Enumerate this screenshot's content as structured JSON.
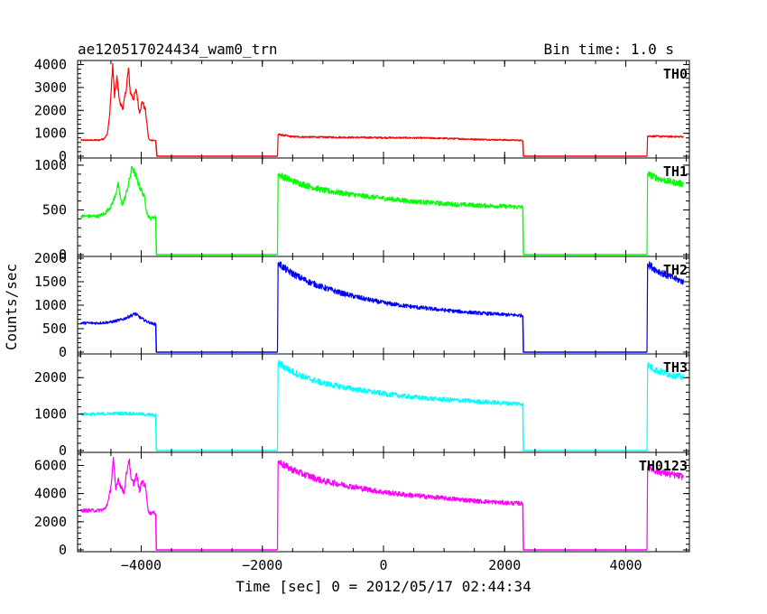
{
  "header": {
    "title": "ae120517024434_wam0_trn",
    "bin_time": "Bin time: 1.0 s"
  },
  "chart_data": {
    "type": "line",
    "xlabel": "Time [sec] 0 = 2012/05/17 02:44:34",
    "ylabel": "Counts/sec",
    "xlim": [
      -5050,
      5050
    ],
    "x_ticks": [
      -4000,
      -2000,
      0,
      2000,
      4000
    ],
    "x_tick_labels": [
      "−4000",
      "−2000",
      "0",
      "2000",
      "4000"
    ],
    "panels": [
      {
        "name": "TH0",
        "color": "#ff0000",
        "ylim": [
          0,
          4100
        ],
        "y_ticks": [
          0,
          1000,
          2000,
          3000,
          4000
        ],
        "y_tick_labels": [
          "0",
          "1000",
          "2000",
          "3000",
          "4000"
        ],
        "series": [
          {
            "x": [
              -5000,
              -4700,
              -4620,
              -4560,
              -4520,
              -4470,
              -4440,
              -4400,
              -4350,
              -4300,
              -4250,
              -4210,
              -4180,
              -4130,
              -4080,
              -4030,
              -3980,
              -3930,
              -3880,
              -3860,
              -3830,
              -3760
            ],
            "y": [
              700,
              700,
              760,
              950,
              1800,
              4000,
              2600,
              3400,
              2300,
              2100,
              2900,
              3800,
              2800,
              2500,
              2900,
              1900,
              2400,
              2000,
              800,
              700,
              700,
              690
            ]
          },
          {
            "x": [
              -3760,
              -3740,
              -1750
            ],
            "y": [
              690,
              0,
              0
            ]
          },
          {
            "x": [
              -1750,
              -1740,
              -1500,
              -1000,
              -500,
              0,
              500,
              1000,
              1500,
              2000,
              2300
            ],
            "y": [
              0,
              950,
              850,
              830,
              820,
              810,
              800,
              780,
              740,
              710,
              690
            ]
          },
          {
            "x": [
              2300,
              2310,
              4350
            ],
            "y": [
              690,
              0,
              0
            ]
          },
          {
            "x": [
              4350,
              4360,
              4600,
              4950
            ],
            "y": [
              0,
              880,
              860,
              850
            ]
          }
        ]
      },
      {
        "name": "TH1",
        "color": "#00ff00",
        "ylim": [
          0,
          1060
        ],
        "y_ticks": [
          0,
          500,
          1000
        ],
        "y_tick_labels": [
          "0",
          "500",
          "1000"
        ],
        "series": [
          {
            "x": [
              -5000,
              -4700,
              -4600,
              -4500,
              -4450,
              -4380,
              -4320,
              -4260,
              -4200,
              -4150,
              -4100,
              -4050,
              -4000,
              -3950,
              -3900,
              -3850,
              -3800,
              -3760
            ],
            "y": [
              430,
              430,
              460,
              540,
              620,
              780,
              550,
              650,
              820,
              980,
              900,
              800,
              720,
              650,
              450,
              400,
              420,
              420
            ]
          },
          {
            "x": [
              -3760,
              -3750,
              -1750
            ],
            "y": [
              420,
              0,
              0
            ]
          },
          {
            "x": [
              -1750,
              -1740,
              -1600,
              -1400,
              -1200,
              -1000,
              -700,
              -400,
              0,
              400,
              800,
              1200,
              1600,
              2000,
              2300
            ],
            "y": [
              0,
              900,
              850,
              800,
              760,
              720,
              690,
              660,
              630,
              600,
              580,
              560,
              550,
              540,
              530
            ]
          },
          {
            "x": [
              2300,
              2310,
              4350
            ],
            "y": [
              530,
              0,
              0
            ]
          },
          {
            "x": [
              4350,
              4360,
              4500,
              4700,
              4950
            ],
            "y": [
              0,
              900,
              860,
              820,
              790
            ]
          }
        ]
      },
      {
        "name": "TH2",
        "color": "#0000ff",
        "ylim": [
          0,
          2000
        ],
        "y_ticks": [
          0,
          500,
          1000,
          1500,
          2000
        ],
        "y_tick_labels": [
          "0",
          "500",
          "1000",
          "1500",
          "2000"
        ],
        "series": [
          {
            "x": [
              -5000,
              -4700,
              -4500,
              -4300,
              -4200,
              -4100,
              -4000,
              -3900,
              -3800,
              -3760
            ],
            "y": [
              620,
              620,
              640,
              700,
              760,
              820,
              720,
              650,
              600,
              600
            ]
          },
          {
            "x": [
              -3760,
              -3750,
              -1750
            ],
            "y": [
              600,
              0,
              0
            ]
          },
          {
            "x": [
              -1750,
              -1740,
              -1600,
              -1400,
              -1200,
              -1000,
              -700,
              -400,
              0,
              400,
              800,
              1200,
              1600,
              2000,
              2300
            ],
            "y": [
              0,
              1900,
              1750,
              1600,
              1480,
              1380,
              1260,
              1160,
              1050,
              980,
              920,
              870,
              830,
              800,
              780
            ]
          },
          {
            "x": [
              2300,
              2310,
              4350
            ],
            "y": [
              780,
              0,
              0
            ]
          },
          {
            "x": [
              4350,
              4360,
              4500,
              4700,
              4950
            ],
            "y": [
              0,
              1880,
              1750,
              1620,
              1500
            ]
          }
        ]
      },
      {
        "name": "TH3",
        "color": "#00ffff",
        "ylim": [
          0,
          2600
        ],
        "y_ticks": [
          0,
          1000,
          2000
        ],
        "y_tick_labels": [
          "0",
          "1000",
          "2000"
        ],
        "series": [
          {
            "x": [
              -5000,
              -4700,
              -4400,
              -4100,
              -3900,
              -3760
            ],
            "y": [
              1000,
              1000,
              1020,
              1010,
              990,
              970
            ]
          },
          {
            "x": [
              -3760,
              -3750,
              -1750
            ],
            "y": [
              970,
              0,
              0
            ]
          },
          {
            "x": [
              -1750,
              -1740,
              -1600,
              -1400,
              -1200,
              -1000,
              -700,
              -400,
              0,
              400,
              800,
              1200,
              1600,
              2000,
              2300
            ],
            "y": [
              0,
              2400,
              2250,
              2080,
              1950,
              1850,
              1750,
              1660,
              1560,
              1480,
              1420,
              1380,
              1340,
              1300,
              1280
            ]
          },
          {
            "x": [
              2300,
              2310,
              4350
            ],
            "y": [
              1280,
              0,
              0
            ]
          },
          {
            "x": [
              4350,
              4360,
              4500,
              4700,
              4950
            ],
            "y": [
              0,
              2350,
              2200,
              2100,
              2000
            ]
          }
        ]
      },
      {
        "name": "TH0123",
        "color": "#ff00ff",
        "ylim": [
          0,
          6800
        ],
        "y_ticks": [
          0,
          2000,
          4000,
          6000
        ],
        "y_tick_labels": [
          "0",
          "2000",
          "4000",
          "6000"
        ],
        "series": [
          {
            "x": [
              -5000,
              -4700,
              -4600,
              -4540,
              -4500,
              -4460,
              -4420,
              -4380,
              -4330,
              -4280,
              -4240,
              -4200,
              -4170,
              -4120,
              -4080,
              -4030,
              -3980,
              -3930,
              -3880,
              -3850,
              -3800,
              -3760
            ],
            "y": [
              2800,
              2800,
              2900,
              3500,
              4500,
              6400,
              4300,
              5100,
              4400,
              4100,
              5500,
              6500,
              5000,
              4700,
              5400,
              4200,
              4900,
              4500,
              2700,
              2600,
              2650,
              2600
            ]
          },
          {
            "x": [
              -3760,
              -3750,
              -1750
            ],
            "y": [
              2600,
              0,
              0
            ]
          },
          {
            "x": [
              -1750,
              -1740,
              -1600,
              -1400,
              -1200,
              -1000,
              -700,
              -400,
              0,
              400,
              800,
              1200,
              1600,
              2000,
              2300
            ],
            "y": [
              0,
              6300,
              5900,
              5500,
              5200,
              4900,
              4650,
              4400,
              4100,
              3900,
              3750,
              3600,
              3450,
              3350,
              3300
            ]
          },
          {
            "x": [
              2300,
              2310,
              4350
            ],
            "y": [
              3300,
              0,
              0
            ]
          },
          {
            "x": [
              4350,
              4360,
              4500,
              4700,
              4950
            ],
            "y": [
              0,
              5900,
              5600,
              5400,
              5200
            ]
          }
        ]
      }
    ]
  }
}
